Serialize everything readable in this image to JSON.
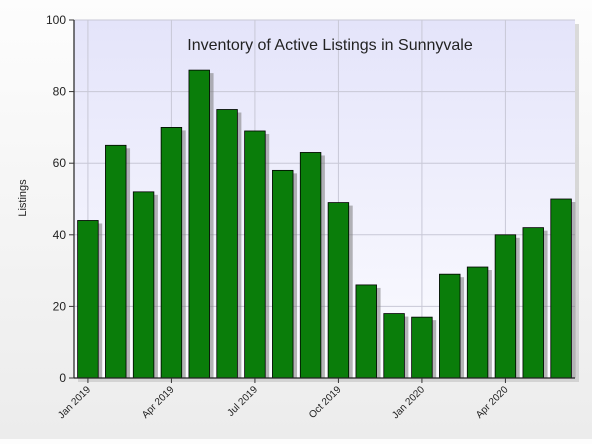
{
  "chart_data": {
    "type": "bar",
    "title": "Inventory of Active Listings in Sunnyvale",
    "ylabel": "Listings",
    "xlabel": "",
    "ylim": [
      0,
      100
    ],
    "yticks": [
      0,
      20,
      40,
      60,
      80,
      100
    ],
    "grid": true,
    "categories": [
      "Jan 2019",
      "Feb 2019",
      "Mar 2019",
      "Apr 2019",
      "May 2019",
      "Jun 2019",
      "Jul 2019",
      "Aug 2019",
      "Sep 2019",
      "Oct 2019",
      "Nov 2019",
      "Dec 2019",
      "Jan 2020",
      "Feb 2020",
      "Mar 2020",
      "Apr 2020",
      "May 2020",
      "Jun 2020"
    ],
    "xtick_labels": [
      "Jan 2019",
      "Apr 2019",
      "Jul 2019",
      "Oct 2019",
      "Jan 2020",
      "Apr 2020"
    ],
    "values": [
      44,
      65,
      52,
      70,
      86,
      75,
      69,
      58,
      63,
      49,
      26,
      18,
      17,
      29,
      31,
      40,
      42,
      50
    ],
    "colors": {
      "bar": "#0a7d0a",
      "bar_edge": "#000000",
      "plot_background_top": "#e4e4fa",
      "plot_background_bottom": "#fcfcff",
      "grid": "#c8c8d6"
    }
  }
}
